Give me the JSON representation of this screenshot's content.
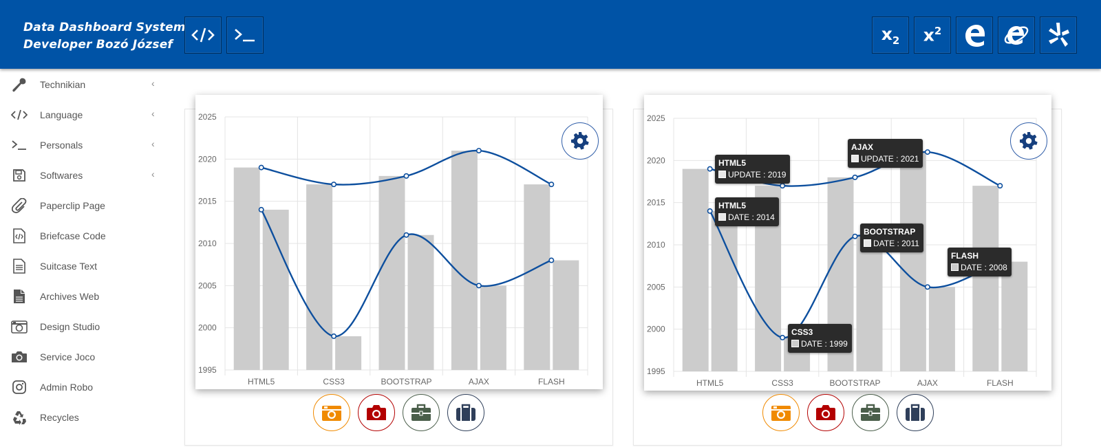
{
  "header": {
    "title_line1": "Data Dashboard System",
    "title_line2": "Developer Bozó József",
    "left_buttons": [
      {
        "name": "code-icon"
      },
      {
        "name": "terminal-icon"
      }
    ],
    "right_buttons": [
      {
        "name": "subscript-icon",
        "base": "x",
        "script": "2"
      },
      {
        "name": "superscript-icon",
        "base": "x",
        "script": "2"
      },
      {
        "name": "edge-icon"
      },
      {
        "name": "internet-explorer-icon"
      },
      {
        "name": "yelp-icon"
      }
    ],
    "color": "#0053a6"
  },
  "sidebar": {
    "items": [
      {
        "label": "Technikian",
        "icon": "wrench-icon",
        "submenu": true
      },
      {
        "label": "Language",
        "icon": "code-icon",
        "submenu": true
      },
      {
        "label": "Personals",
        "icon": "terminal-icon",
        "submenu": true
      },
      {
        "label": "Softwares",
        "icon": "floppy-disk-icon",
        "submenu": true
      },
      {
        "label": "Paperclip Page",
        "icon": "paperclip-icon",
        "submenu": false
      },
      {
        "label": "Briefcase Code",
        "icon": "file-code-icon",
        "submenu": false
      },
      {
        "label": "Suitcase Text",
        "icon": "file-text-icon",
        "submenu": false
      },
      {
        "label": "Archives Web",
        "icon": "file-icon",
        "submenu": false
      },
      {
        "label": "Design Studio",
        "icon": "camera-retro-icon",
        "submenu": false
      },
      {
        "label": "Service Joco",
        "icon": "camera-icon",
        "submenu": false
      },
      {
        "label": "Admin Robo",
        "icon": "instagram-icon",
        "submenu": false
      },
      {
        "label": "Recycles",
        "icon": "recycle-icon",
        "submenu": false
      }
    ],
    "chevron": "‹"
  },
  "chart_data": [
    {
      "type": "bar",
      "categories": [
        "HTML5",
        "CSS3",
        "BOOTSTRAP",
        "AJAX",
        "FLASH"
      ],
      "series": [
        {
          "name": "UPDATE",
          "values": [
            2019,
            2017,
            2018,
            2021,
            2017
          ]
        },
        {
          "name": "DATE",
          "values": [
            2014,
            1999,
            2011,
            2005,
            2008
          ]
        }
      ],
      "lines": [
        {
          "name": "UPDATE",
          "values": [
            2019,
            2017,
            2018,
            2021,
            2017
          ]
        },
        {
          "name": "DATE",
          "values": [
            2014,
            1999,
            2011,
            2005,
            2008
          ]
        }
      ],
      "ylim": [
        1995,
        2025
      ],
      "yticks": [
        1995,
        2000,
        2005,
        2010,
        2015,
        2020,
        2025
      ],
      "grid": true,
      "bar_color": "#cccccc",
      "line_color": "#0d4f9e"
    },
    {
      "type": "bar",
      "categories": [
        "HTML5",
        "CSS3",
        "BOOTSTRAP",
        "AJAX",
        "FLASH"
      ],
      "series": [
        {
          "name": "UPDATE",
          "values": [
            2019,
            2017,
            2018,
            2021,
            2017
          ]
        },
        {
          "name": "DATE",
          "values": [
            2014,
            1999,
            2011,
            2005,
            2008
          ]
        }
      ],
      "lines": [
        {
          "name": "UPDATE",
          "values": [
            2019,
            2017,
            2018,
            2021,
            2017
          ]
        },
        {
          "name": "DATE",
          "values": [
            2014,
            1999,
            2011,
            2005,
            2008
          ]
        }
      ],
      "ylim": [
        1995,
        2025
      ],
      "yticks": [
        1995,
        2000,
        2005,
        2010,
        2015,
        2020,
        2025
      ],
      "grid": true,
      "bar_color": "#cccccc",
      "line_color": "#0d4f9e",
      "tooltips": [
        {
          "title": "HTML5",
          "text": "UPDATE : 2019"
        },
        {
          "title": "AJAX",
          "text": "UPDATE : 2021"
        },
        {
          "title": "HTML5",
          "text": "DATE : 2014"
        },
        {
          "title": "BOOTSTRAP",
          "text": "DATE : 2011"
        },
        {
          "title": "FLASH",
          "text": "DATE : 2008"
        },
        {
          "title": "CSS3",
          "text": "DATE : 1999"
        }
      ]
    }
  ],
  "toolbar": [
    {
      "name": "camera-retro-button",
      "color": "#f08a00"
    },
    {
      "name": "camera-button",
      "color": "#b30000"
    },
    {
      "name": "briefcase-button",
      "color": "#4a5e4a"
    },
    {
      "name": "suitcase-button",
      "color": "#2f3f5a"
    }
  ]
}
